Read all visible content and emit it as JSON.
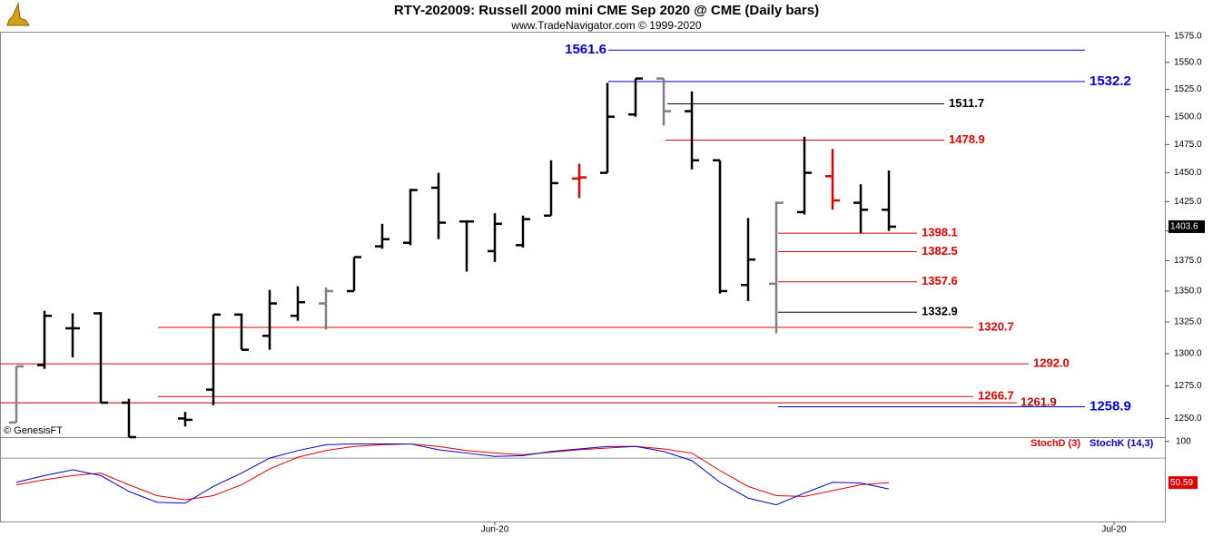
{
  "chart_data": {
    "type": "ohlc",
    "title": "RTY-202009:  Russell 2000 mini CME Sep 2020 @ CME  (Daily bars)",
    "subtitle": "www.TradeNavigator.com © 1999-2020",
    "watermark": "© GenesisFT",
    "categories": [
      null,
      null,
      null,
      null,
      null,
      null,
      null,
      null,
      null,
      null,
      null,
      null,
      null,
      null,
      null,
      null,
      null,
      "Jun-20",
      null,
      null,
      null,
      null,
      null,
      null,
      null,
      null,
      null,
      null,
      null,
      null,
      null,
      null,
      null,
      null,
      null,
      null,
      null,
      null,
      null,
      "Jul-20",
      null
    ],
    "open": [
      1247,
      1291,
      1320,
      1332,
      1262,
      null,
      1250,
      1272,
      1331,
      1314,
      1330,
      1340,
      1350,
      1387,
      1390,
      1437,
      1408,
      1383,
      1388,
      1413,
      1445,
      1450,
      1502,
      1535,
      1505,
      1461,
      1355,
      1356,
      1416,
      1447,
      1424,
      1418,
      null,
      null,
      null,
      null,
      null,
      null,
      null,
      null,
      null
    ],
    "high": [
      1290,
      1334,
      1332,
      1333,
      1265,
      null,
      1255,
      1331,
      1332,
      1351,
      1354,
      1353,
      1378,
      1406,
      1436,
      1450,
      1408,
      1415,
      1413,
      1461,
      1458,
      1531,
      1535,
      1535,
      1523,
      1461,
      1411,
      1425,
      1482,
      1471,
      1440,
      1452,
      null,
      null,
      null,
      null,
      null,
      null,
      null,
      null,
      null
    ],
    "low": [
      1247,
      1288,
      1297,
      1262,
      1236,
      null,
      1244,
      1260,
      1303,
      1303,
      1326,
      1319,
      1350,
      1385,
      1388,
      1393,
      1366,
      1374,
      1386,
      1413,
      1428,
      1450,
      1500,
      1492,
      1453,
      1348,
      1342,
      1316,
      1414,
      1418,
      1398,
      1400,
      null,
      null,
      null,
      null,
      null,
      null,
      null,
      null,
      null
    ],
    "close": [
      1290,
      1330,
      1320,
      1262,
      1236,
      null,
      1249,
      1331,
      1303,
      1340,
      1341,
      1350,
      1378,
      1393,
      1435,
      1407,
      1408,
      1406,
      1410,
      1441,
      1446,
      1500,
      1535,
      1505,
      1461,
      1350,
      1376,
      1424,
      1450,
      1426,
      1418,
      1403.6,
      null,
      null,
      null,
      null,
      null,
      null,
      null,
      null,
      null
    ],
    "bar_colors": [
      "#808080",
      "#000000",
      "#000000",
      "#000000",
      "#000000",
      null,
      "#000000",
      "#000000",
      "#000000",
      "#000000",
      "#000000",
      "#808080",
      "#000000",
      "#000000",
      "#000000",
      "#000000",
      "#000000",
      "#000000",
      "#000000",
      "#000000",
      "#e00000",
      "#000000",
      "#000000",
      "#808080",
      "#000000",
      "#000000",
      "#000000",
      "#808080",
      "#000000",
      "#e00000",
      "#000000",
      "#000000",
      null,
      null,
      null,
      null,
      null,
      null,
      null,
      null,
      null
    ],
    "log_scale": true,
    "ylim": [
      1236,
      1579
    ],
    "yticks": [
      {
        "value": 1250,
        "label": "1250.0"
      },
      {
        "value": 1275,
        "label": "1275.0"
      },
      {
        "value": 1300,
        "label": "1300.0"
      },
      {
        "value": 1325,
        "label": "1325.0"
      },
      {
        "value": 1350,
        "label": "1350.0"
      },
      {
        "value": 1375,
        "label": "1375.0"
      },
      {
        "value": 1400,
        "label": "1400.0"
      },
      {
        "value": 1425,
        "label": "1425.0"
      },
      {
        "value": 1450,
        "label": "1450.0"
      },
      {
        "value": 1475,
        "label": "1475.0"
      },
      {
        "value": 1500,
        "label": "1500.0"
      },
      {
        "value": 1525,
        "label": "1525.0"
      },
      {
        "value": 1550,
        "label": "1550.0"
      },
      {
        "value": 1575,
        "label": "1575.0"
      }
    ],
    "levels": [
      {
        "value": 1561.6,
        "label": "1561.6",
        "color": "#0000dd"
      },
      {
        "value": 1532.2,
        "label": "1532.2",
        "color": "#0000dd"
      },
      {
        "value": 1511.7,
        "label": "1511.7",
        "color": "#000000"
      },
      {
        "value": 1478.9,
        "label": "1478.9",
        "color": "#e00000"
      },
      {
        "value": 1398.1,
        "label": "1398.1",
        "color": "#e00000"
      },
      {
        "value": 1382.5,
        "label": "1382.5",
        "color": "#e00000"
      },
      {
        "value": 1357.6,
        "label": "1357.6",
        "color": "#e00000"
      },
      {
        "value": 1332.9,
        "label": "1332.9",
        "color": "#000000"
      },
      {
        "value": 1320.7,
        "label": "1320.7",
        "color": "#e00000"
      },
      {
        "value": 1292.0,
        "label": "1292.0",
        "color": "#e00000"
      },
      {
        "value": 1266.7,
        "label": "1266.7",
        "color": "#e00000"
      },
      {
        "value": 1261.9,
        "label": "1261.9",
        "color": "#c00000"
      },
      {
        "value": 1258.9,
        "label": "1258.9",
        "color": "#0000dd"
      }
    ],
    "indicator": {
      "type": "line",
      "ylim": [
        4,
        104
      ],
      "yticks": [
        100
      ],
      "ref_lines": [
        80
      ],
      "series": [
        {
          "name": "StochD (3)",
          "color": "#e00000",
          "values": [
            48,
            54,
            59,
            62,
            48,
            35,
            30,
            35,
            48,
            67,
            81,
            89,
            94,
            96,
            97,
            94,
            89,
            86,
            84,
            87,
            90,
            92,
            94,
            91,
            86,
            65,
            46,
            35,
            34,
            41,
            48,
            50.59,
            null,
            null,
            null,
            null,
            null,
            null,
            null,
            null,
            null
          ]
        },
        {
          "name": "StochK (14,3)",
          "color": "#0000cc",
          "values": [
            51,
            59,
            66,
            59,
            40,
            27,
            26,
            46,
            62,
            80,
            89,
            96,
            97,
            97,
            97,
            90,
            86,
            82,
            83,
            88,
            91,
            94,
            94,
            88,
            77,
            51,
            32,
            24,
            38,
            51,
            50,
            43,
            null,
            null,
            null,
            null,
            null,
            null,
            null,
            null,
            null
          ]
        }
      ]
    }
  }
}
